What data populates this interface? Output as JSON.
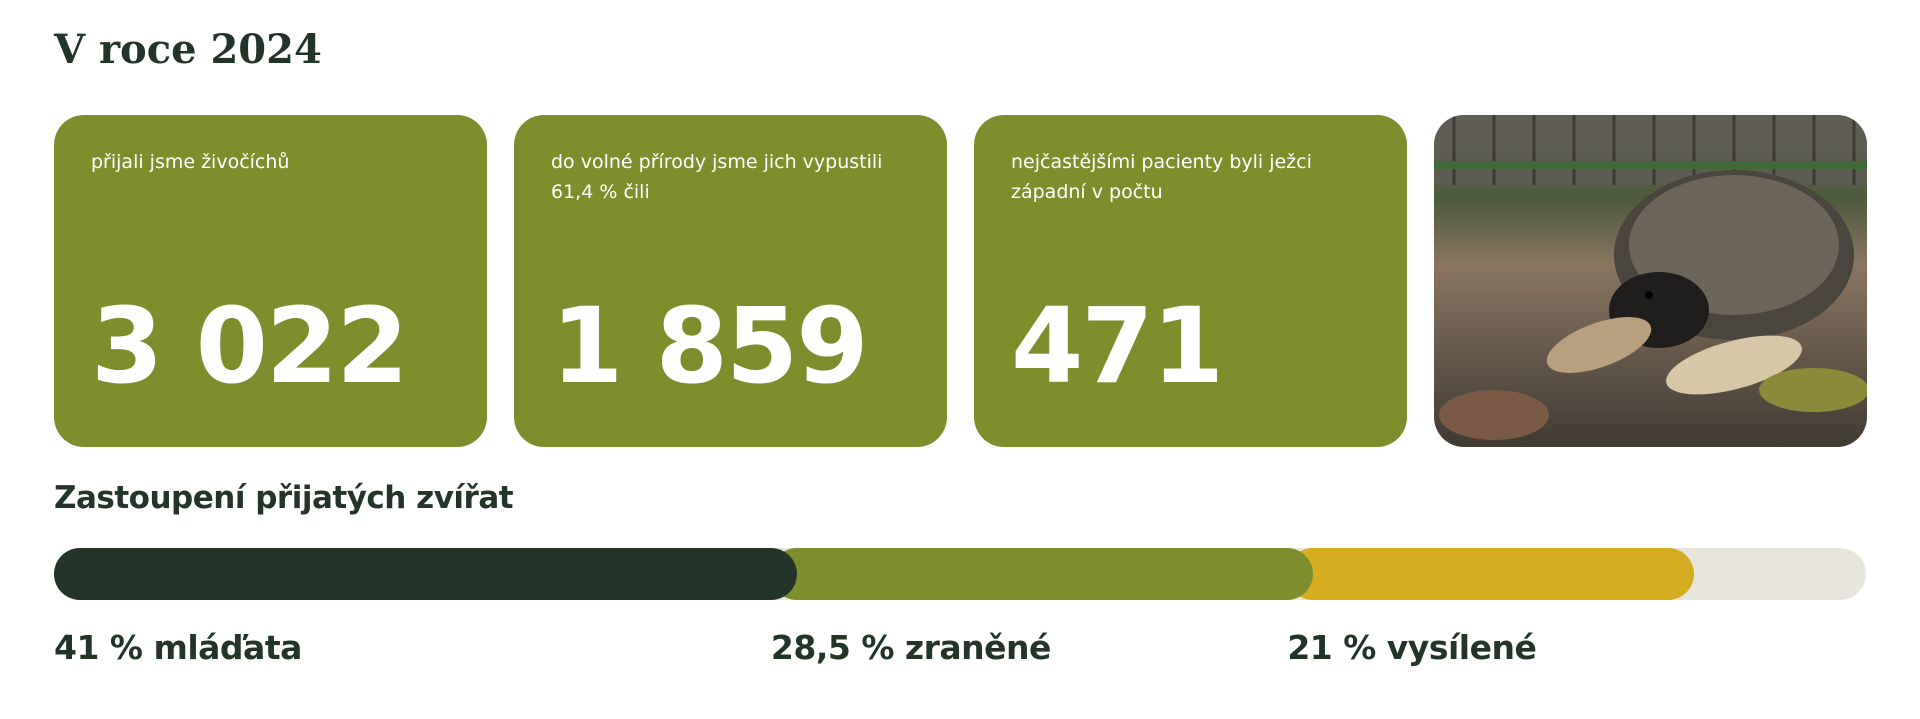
{
  "header": {
    "title": "V roce 2024"
  },
  "cards": [
    {
      "label": "přijali jsme živočíchů",
      "number": "3 022"
    },
    {
      "label": "do volné přírody jsme jich vypustili 61,4 % čili",
      "number": "1 859"
    },
    {
      "label": "nejčastějšími pacienty byli ježci západní v počtu",
      "number": "471"
    }
  ],
  "breakdown": {
    "title": "Zastoupení přijatých zvířat",
    "segments": [
      {
        "value": 41,
        "label": "41 % mláďata",
        "color": "#233529"
      },
      {
        "value": 28.5,
        "label": "28,5 % zraněné",
        "color": "#7f8e2c"
      },
      {
        "value": 21,
        "label": "21 % vysílené",
        "color": "#d4ad20"
      }
    ]
  }
}
